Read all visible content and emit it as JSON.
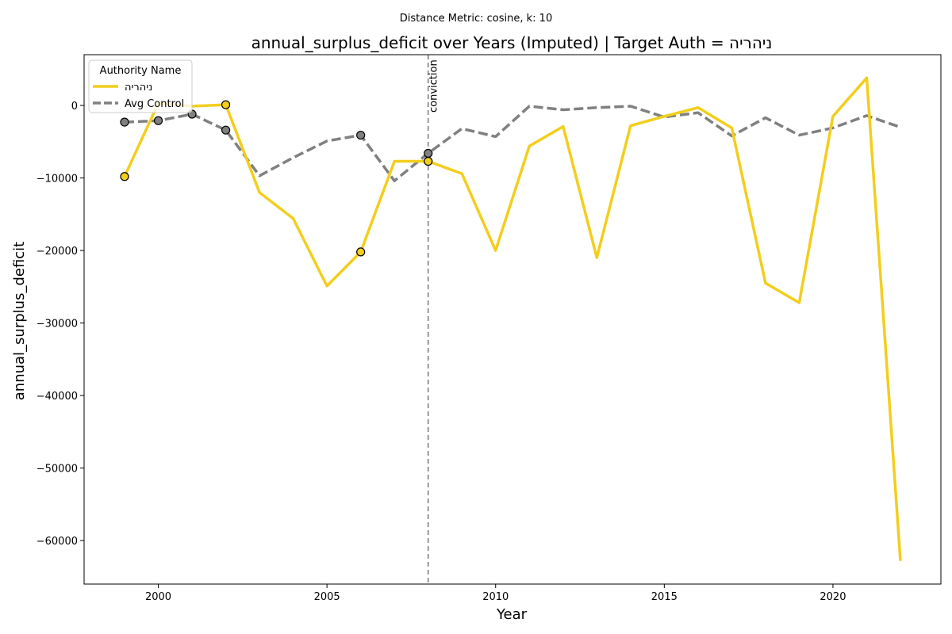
{
  "chart_data": {
    "type": "line",
    "suptitle": "Distance Metric: cosine, k: 10",
    "title": "annual_surplus_deficit over Years (Imputed) | Target Auth = ניהריה",
    "xlabel": "Year",
    "ylabel": "annual_surplus_deficit",
    "xlim": [
      1997.8,
      2023.2
    ],
    "ylim": [
      -66000,
      7000
    ],
    "x_ticks": [
      2000,
      2005,
      2010,
      2015,
      2020
    ],
    "y_ticks": [
      0,
      -10000,
      -20000,
      -30000,
      -40000,
      -50000,
      -60000
    ],
    "y_tick_labels": [
      "0",
      "−10000",
      "−20000",
      "−30000",
      "−40000",
      "−50000",
      "−60000"
    ],
    "grid": false,
    "legend": {
      "title": "Authority Name",
      "placement": "top-left",
      "entries": [
        "ניהריה",
        "Avg Control"
      ]
    },
    "vline": {
      "x": 2008,
      "label": "conviction",
      "color": "#808080"
    },
    "x": [
      1999,
      2000,
      2001,
      2002,
      2003,
      2004,
      2005,
      2006,
      2007,
      2008,
      2009,
      2010,
      2011,
      2012,
      2013,
      2014,
      2015,
      2016,
      2017,
      2018,
      2019,
      2020,
      2021,
      2022
    ],
    "series": [
      {
        "name": "ניהריה",
        "color": "#F2CE1D",
        "style": "solid",
        "values": [
          -9800,
          300,
          -100,
          100,
          -12000,
          -15600,
          -24900,
          -20200,
          -7700,
          -7700,
          -9400,
          -20000,
          -5600,
          -2900,
          -21000,
          -2800,
          -1500,
          -300,
          -3100,
          -24500,
          -27200,
          -1500,
          3800,
          -62800
        ],
        "markers_x": [
          1999,
          2002,
          2006,
          2008
        ],
        "markers_y": [
          -9800,
          100,
          -20200,
          -7700
        ]
      },
      {
        "name": "Avg Control",
        "color": "#808080",
        "style": "dashed",
        "values": [
          -2300,
          -2100,
          -1200,
          -3400,
          -9700,
          -7200,
          -4900,
          -4100,
          -10400,
          -6600,
          -3200,
          -4300,
          -100,
          -600,
          -300,
          -100,
          -1600,
          -1000,
          -4200,
          -1700,
          -4100,
          -3100,
          -1400,
          -3000
        ],
        "markers_x": [
          1999,
          2000,
          2001,
          2002,
          2006,
          2008
        ],
        "markers_y": [
          -2300,
          -2100,
          -1200,
          -3400,
          -4100,
          -6600
        ]
      }
    ]
  }
}
